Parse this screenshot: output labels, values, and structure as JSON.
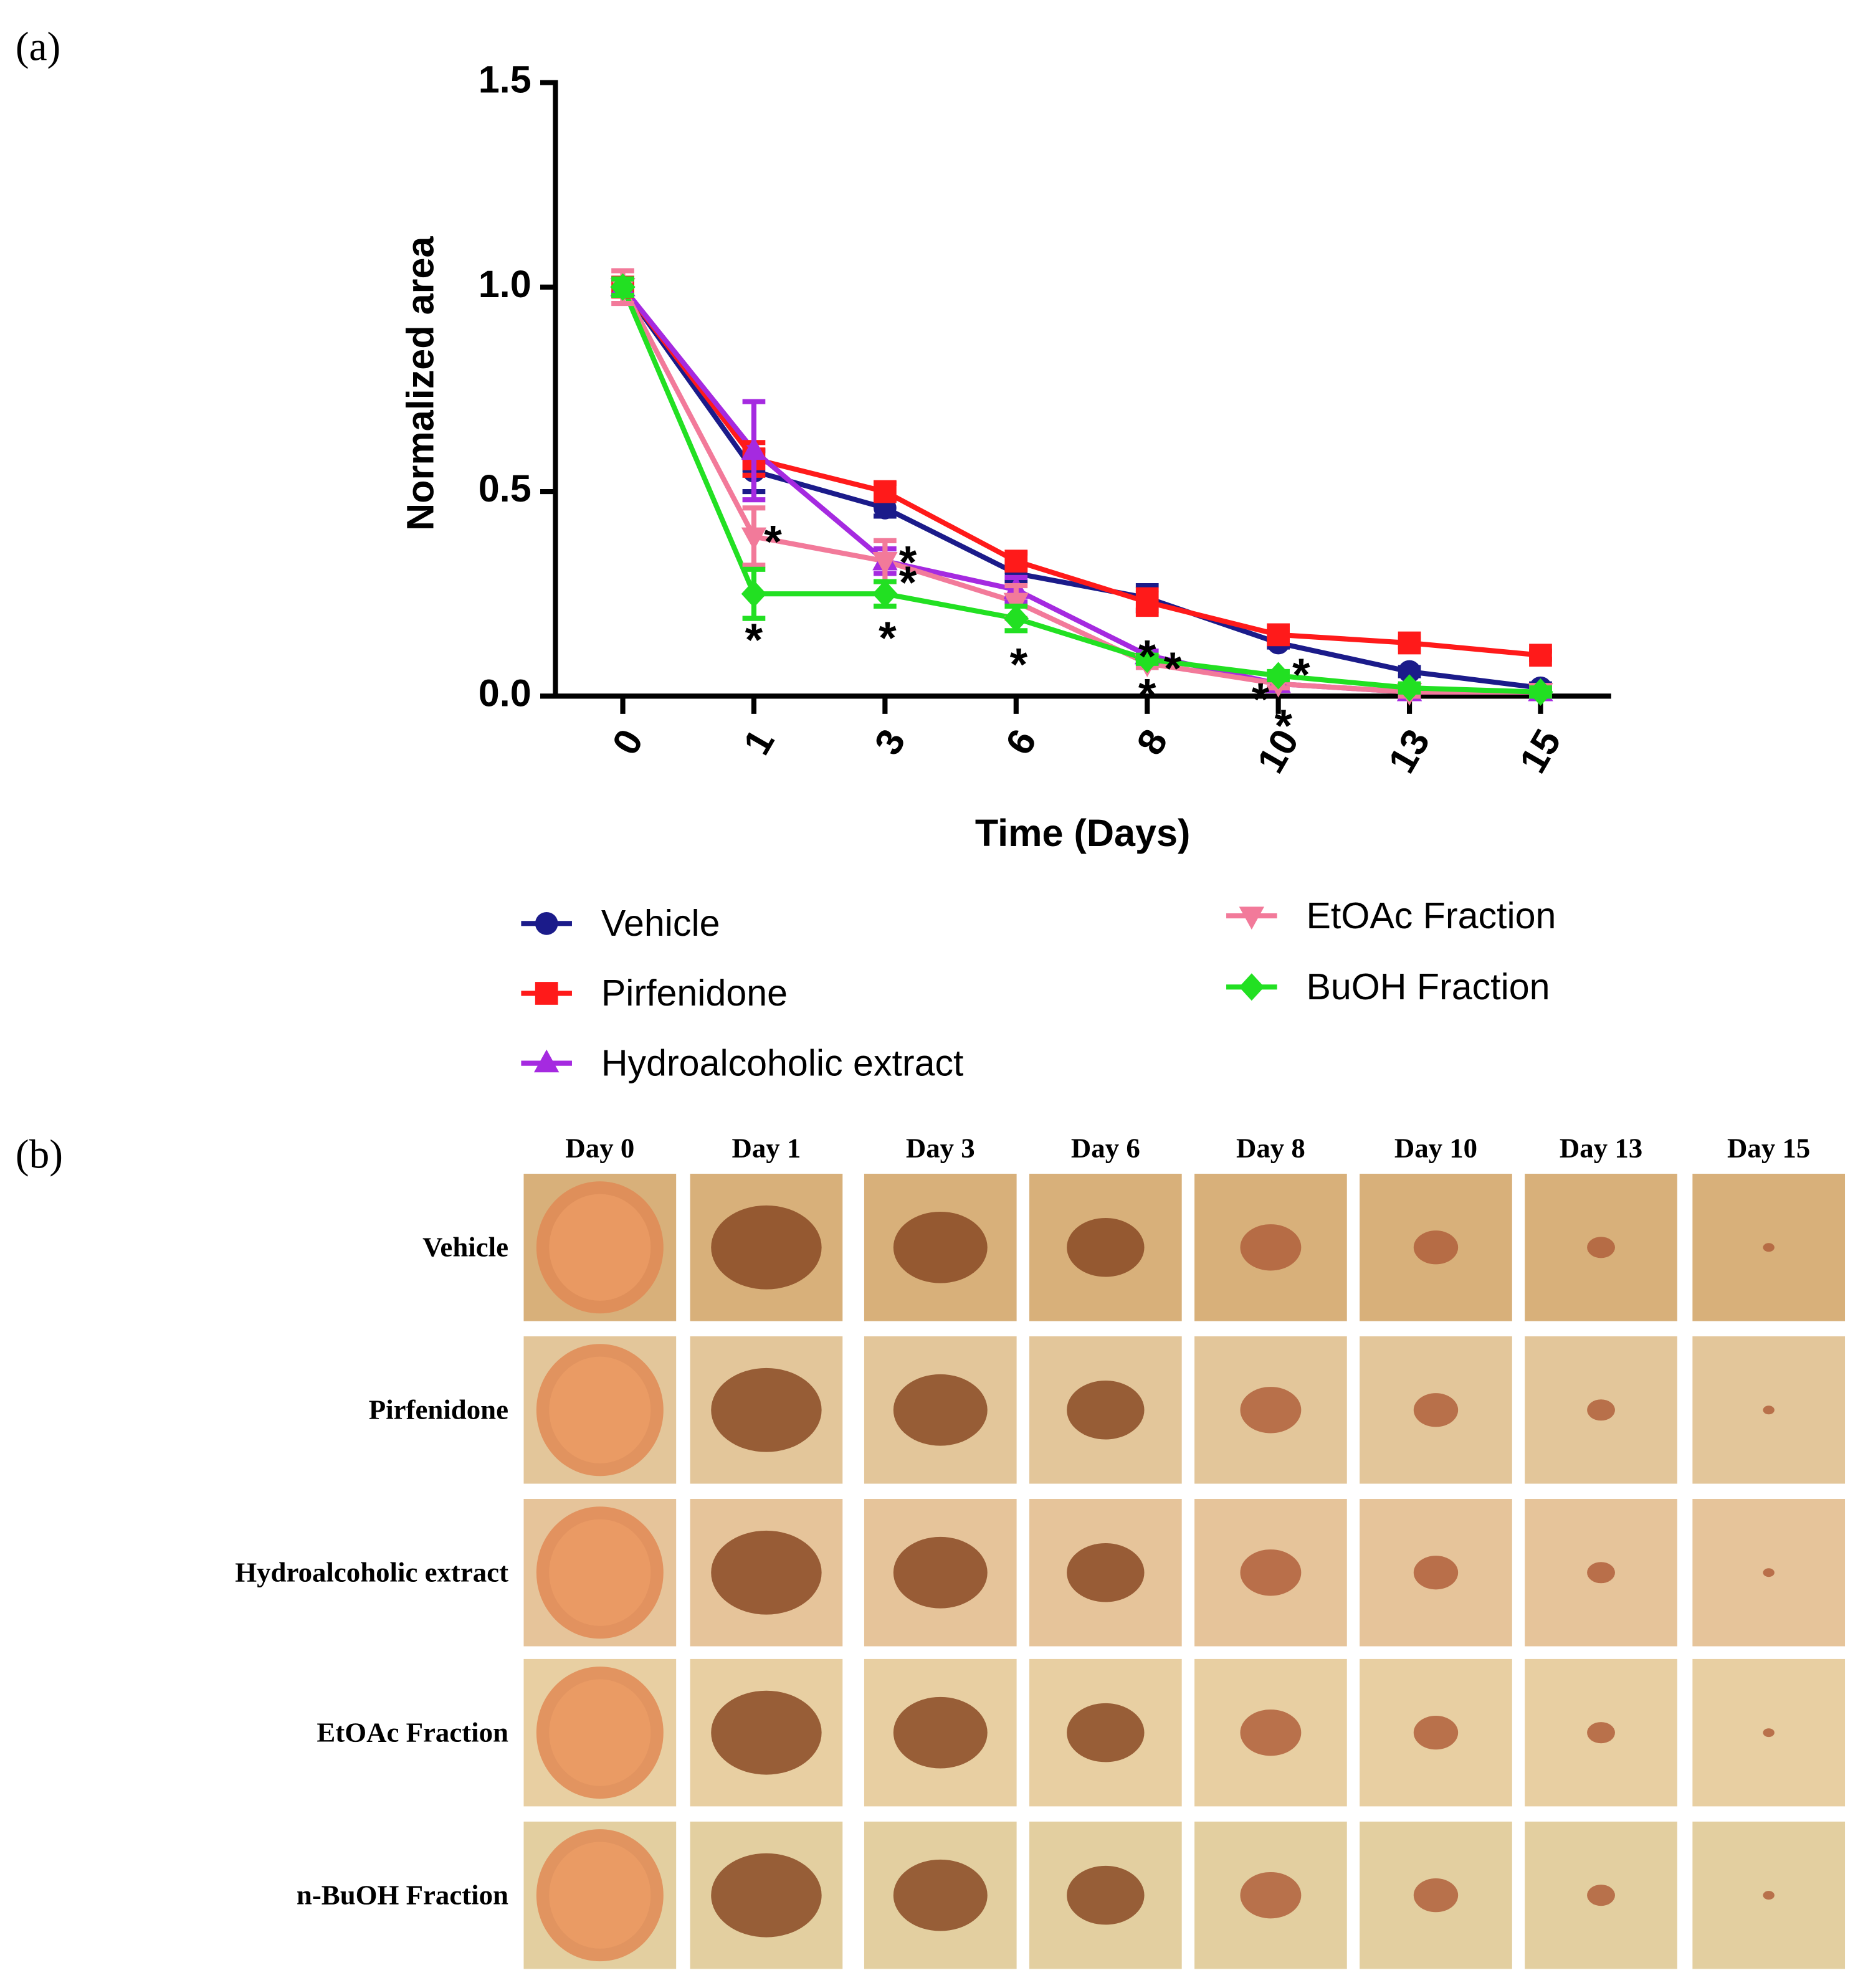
{
  "panel_labels": [
    "(a)",
    "(b)"
  ],
  "chart_data": {
    "type": "line",
    "x_label": "Time (Days)",
    "y_label": "Normalized area",
    "categories": [
      "0",
      "1",
      "3",
      "6",
      "8",
      "10",
      "13",
      "15"
    ],
    "ylim": [
      0,
      1.5
    ],
    "yticks": [
      {
        "value": 0,
        "label": "0.0"
      },
      0.5,
      {
        "value": 1,
        "label": "1.0"
      },
      1.5
    ],
    "legend": "bottom",
    "series": [
      {
        "name": "Vehicle",
        "color": "#1b1b8a",
        "marker": "circle",
        "values": [
          1.0,
          0.55,
          0.46,
          0.3,
          0.24,
          0.13,
          0.06,
          0.02
        ],
        "errors": [
          0.02,
          0.05,
          0.02,
          0.02,
          0.03,
          0.01,
          0.01,
          0.01
        ]
      },
      {
        "name": "Pirfenidone",
        "color": "#ff1a1a",
        "marker": "square",
        "values": [
          1.0,
          0.58,
          0.5,
          0.33,
          0.23,
          0.15,
          0.13,
          0.1
        ],
        "errors": [
          0.02,
          0.04,
          0.02,
          0.02,
          0.03,
          0.01,
          0.01,
          0.01
        ]
      },
      {
        "name": "Hydroalcoholic extract",
        "color": "#a52ae0",
        "marker": "triangle-up",
        "values": [
          1.0,
          0.6,
          0.33,
          0.26,
          0.1,
          0.03,
          0.01,
          0.01
        ],
        "errors": [
          0.02,
          0.12,
          0.03,
          0.03,
          0.01,
          0.01,
          0.01,
          0.01
        ]
      },
      {
        "name": "EtOAc Fraction",
        "color": "#f27a9a",
        "marker": "triangle-down",
        "values": [
          1.0,
          0.39,
          0.33,
          0.23,
          0.08,
          0.03,
          0.01,
          0.01
        ],
        "errors": [
          0.04,
          0.07,
          0.05,
          0.04,
          0.01,
          0.01,
          0.01,
          0.01
        ]
      },
      {
        "name": "BuOH Fraction",
        "color": "#22e022",
        "marker": "diamond",
        "values": [
          1.0,
          0.25,
          0.25,
          0.19,
          0.09,
          0.05,
          0.02,
          0.01
        ],
        "errors": [
          0.02,
          0.06,
          0.03,
          0.03,
          0.01,
          0.01,
          0.01,
          0.01
        ]
      }
    ],
    "annotations": [
      {
        "text": "*",
        "x": "1",
        "y": 0.4
      },
      {
        "text": "*",
        "x": "1",
        "y": 0.16
      },
      {
        "text": "*",
        "x": "3",
        "y": 0.35
      },
      {
        "text": "*",
        "x": "3",
        "y": 0.3
      },
      {
        "text": "*",
        "x": "3",
        "y": 0.165
      },
      {
        "text": "*",
        "x": "6",
        "y": 0.1
      },
      {
        "text": "*",
        "x": "8",
        "y": 0.12
      },
      {
        "text": "*",
        "x": "8",
        "y": 0.09
      },
      {
        "text": "*",
        "x": "8",
        "y": 0.025
      },
      {
        "text": "*",
        "x": "10",
        "y": 0.015
      },
      {
        "text": "*",
        "x": "10",
        "y": 0.075
      },
      {
        "text": "*",
        "x": "10",
        "y": -0.05
      }
    ]
  },
  "photo_grid": {
    "columns": [
      "Day 0",
      "Day 1",
      "Day 3",
      "Day 6",
      "Day 8",
      "Day 10",
      "Day 13",
      "Day 15"
    ],
    "rows": [
      "Vehicle",
      "Pirfenidone",
      "Hydroalcoholic extract",
      "EtOAc Fraction",
      "n-BuOH Fraction"
    ]
  }
}
